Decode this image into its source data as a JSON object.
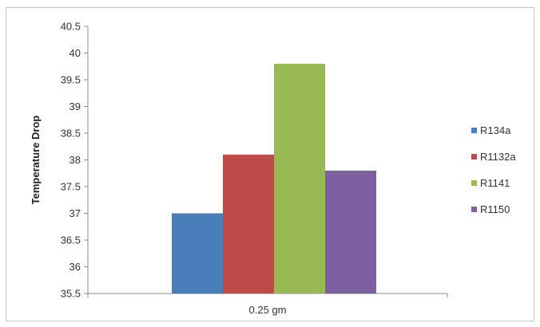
{
  "chart_data": {
    "type": "bar",
    "title": "",
    "xlabel": "",
    "ylabel": "Temperature Drop",
    "categories": [
      "0.25 gm"
    ],
    "ylim": [
      35.5,
      40.5
    ],
    "yticks": [
      35.5,
      36,
      36.5,
      37,
      37.5,
      38,
      38.5,
      39,
      39.5,
      40,
      40.5
    ],
    "ytick_labels": [
      "35.5",
      "36",
      "36.5",
      "37",
      "37.5",
      "38",
      "38.5",
      "39",
      "39.5",
      "40",
      "40.5"
    ],
    "grid": false,
    "legend": "right",
    "series": [
      {
        "name": "R134a",
        "values": [
          37.0
        ],
        "color": "#4a7ebb"
      },
      {
        "name": "R1132a",
        "values": [
          38.1
        ],
        "color": "#be4b48"
      },
      {
        "name": "R1141",
        "values": [
          39.8
        ],
        "color": "#98b954"
      },
      {
        "name": "R1150",
        "values": [
          37.8
        ],
        "color": "#7d60a0"
      }
    ]
  }
}
